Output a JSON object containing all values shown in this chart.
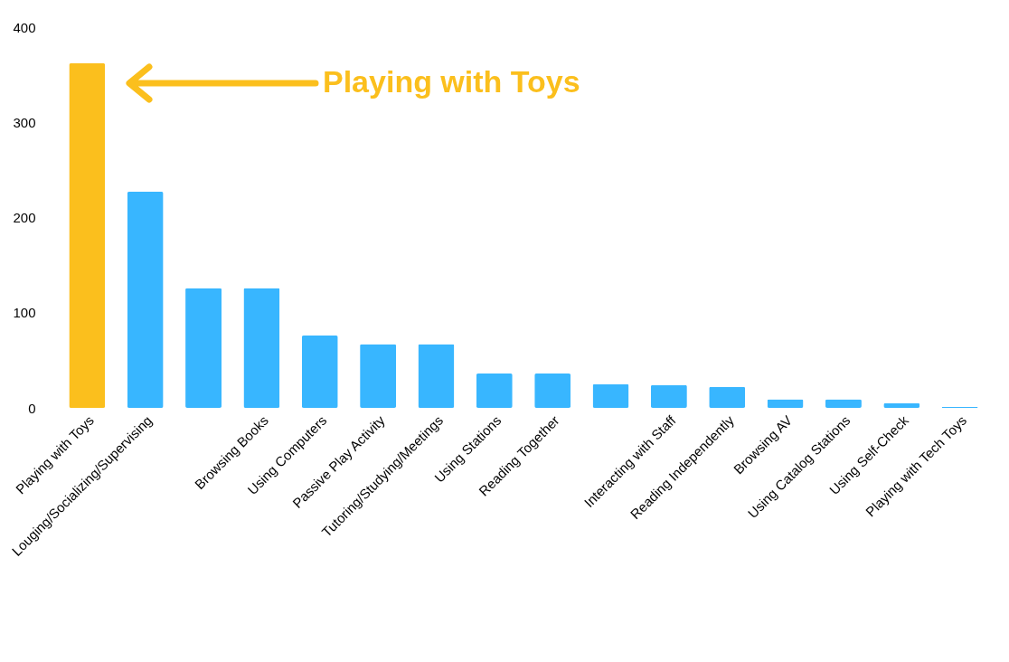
{
  "chart_data": {
    "type": "bar",
    "categories": [
      "Playing with Toys",
      "Louging/Socializing/Supervising",
      null,
      "Browsing Books",
      "Using Computers",
      "Passive Play Activity",
      "Tutoring/Studying/Meetings",
      "Using Stations",
      "Reading Together",
      null,
      "Interacting with Staff",
      "Reading Independently",
      "Browsing AV",
      "Using Catalog Stations",
      "Using Self-Check",
      "Playing with Tech Toys"
    ],
    "values": [
      362,
      227,
      126,
      126,
      76,
      67,
      67,
      36,
      36,
      25,
      24,
      22,
      9,
      9,
      5,
      1
    ],
    "colors": [
      "#fbbf1d",
      "#38b6ff",
      "#38b6ff",
      "#38b6ff",
      "#38b6ff",
      "#38b6ff",
      "#38b6ff",
      "#38b6ff",
      "#38b6ff",
      "#38b6ff",
      "#38b6ff",
      "#38b6ff",
      "#38b6ff",
      "#38b6ff",
      "#38b6ff",
      "#38b6ff"
    ],
    "ylim": [
      0,
      400
    ],
    "yticks": [
      0,
      100,
      200,
      300,
      400
    ],
    "grid": false,
    "annotations": [
      "Playing with Toys"
    ]
  }
}
